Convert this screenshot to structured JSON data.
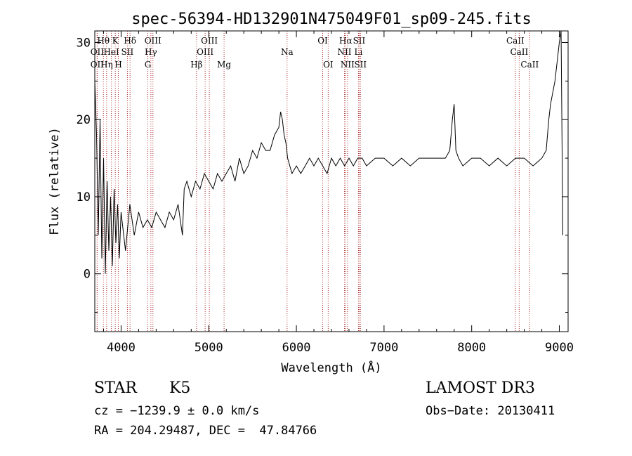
{
  "chart_data": {
    "type": "line",
    "title": "spec-56394-HD132901N475049F01_sp09-245.fits",
    "xlabel": "Wavelength (Å)",
    "ylabel": "Flux (relative)",
    "xlim": [
      3700,
      9100
    ],
    "ylim": [
      -7.5,
      31.5
    ],
    "x_ticks": [
      4000,
      5000,
      6000,
      7000,
      8000,
      9000
    ],
    "y_ticks": [
      0,
      10,
      20,
      30
    ],
    "grid": false,
    "series": [
      {
        "x": [
          3700,
          3720,
          3740,
          3760,
          3780,
          3800,
          3820,
          3840,
          3860,
          3880,
          3900,
          3920,
          3940,
          3960,
          3980,
          4000,
          4050,
          4100,
          4150,
          4200,
          4250,
          4300,
          4350,
          4400,
          4450,
          4500,
          4550,
          4600,
          4650,
          4700,
          4720,
          4750,
          4800,
          4850,
          4900,
          4950,
          5000,
          5050,
          5100,
          5150,
          5200,
          5250,
          5300,
          5350,
          5400,
          5450,
          5500,
          5550,
          5600,
          5650,
          5700,
          5750,
          5800,
          5820,
          5840,
          5860,
          5880,
          5900,
          5950,
          6000,
          6050,
          6100,
          6150,
          6200,
          6250,
          6300,
          6350,
          6400,
          6450,
          6500,
          6550,
          6600,
          6650,
          6700,
          6750,
          6800,
          6900,
          7000,
          7100,
          7200,
          7300,
          7400,
          7500,
          7600,
          7700,
          7750,
          7780,
          7800,
          7820,
          7850,
          7900,
          8000,
          8100,
          8200,
          8300,
          8400,
          8500,
          8600,
          8700,
          8800,
          8850,
          8880,
          8900,
          8950,
          9000,
          9020,
          9040
        ],
        "y": [
          25,
          18,
          5,
          20,
          2,
          15,
          0,
          12,
          3,
          10,
          1,
          11,
          4,
          9,
          2,
          8,
          3,
          9,
          5,
          8,
          6,
          7,
          6,
          8,
          7,
          6,
          8,
          7,
          9,
          5,
          11,
          12,
          10,
          12,
          11,
          13,
          12,
          11,
          13,
          12,
          13,
          14,
          12,
          15,
          13,
          14,
          16,
          15,
          17,
          16,
          16,
          18,
          19,
          21,
          20,
          18,
          17,
          15,
          13,
          14,
          13,
          14,
          15,
          14,
          15,
          14,
          13,
          15,
          14,
          15,
          14,
          15,
          14,
          15,
          15,
          14,
          15,
          15,
          14,
          15,
          14,
          15,
          15,
          15,
          15,
          16,
          20,
          22,
          16,
          15,
          14,
          15,
          15,
          14,
          15,
          14,
          15,
          15,
          14,
          15,
          16,
          20,
          22,
          25,
          30,
          32,
          5
        ]
      }
    ],
    "lines": [
      {
        "label": "Hθ",
        "x": 3798,
        "row": 0
      },
      {
        "label": "OII",
        "x": 3727,
        "row": 2
      },
      {
        "label": "OII",
        "x": 3727,
        "row": 1
      },
      {
        "label": "Hη",
        "x": 3835,
        "row": 2
      },
      {
        "label": "HeI",
        "x": 3889,
        "row": 1
      },
      {
        "label": "K",
        "x": 3934,
        "row": 0
      },
      {
        "label": "H",
        "x": 3969,
        "row": 2
      },
      {
        "label": "SII",
        "x": 4072,
        "row": 1
      },
      {
        "label": "Hδ",
        "x": 4102,
        "row": 0
      },
      {
        "label": "OIII",
        "x": 4363,
        "row": 0
      },
      {
        "label": "Hγ",
        "x": 4340,
        "row": 1
      },
      {
        "label": "G",
        "x": 4305,
        "row": 2
      },
      {
        "label": "Hβ",
        "x": 4861,
        "row": 2
      },
      {
        "label": "OIII",
        "x": 4959,
        "row": 1
      },
      {
        "label": "OIII",
        "x": 5007,
        "row": 0
      },
      {
        "label": "Mg",
        "x": 5175,
        "row": 2
      },
      {
        "label": "Na",
        "x": 5894,
        "row": 1
      },
      {
        "label": "OI",
        "x": 6300,
        "row": 0
      },
      {
        "label": "OI",
        "x": 6363,
        "row": 2
      },
      {
        "label": "Hα",
        "x": 6563,
        "row": 0
      },
      {
        "label": "NII",
        "x": 6548,
        "row": 1
      },
      {
        "label": "NII",
        "x": 6583,
        "row": 2
      },
      {
        "label": "SII",
        "x": 6716,
        "row": 0
      },
      {
        "label": "Li",
        "x": 6708,
        "row": 1
      },
      {
        "label": "SII",
        "x": 6731,
        "row": 2
      },
      {
        "label": "CaII",
        "x": 8498,
        "row": 0
      },
      {
        "label": "CaII",
        "x": 8542,
        "row": 1
      },
      {
        "label": "CaII",
        "x": 8662,
        "row": 2
      }
    ]
  },
  "info": {
    "class": "STAR",
    "subclass": "K5",
    "survey": "LAMOST DR3",
    "cz": "cz = −1239.9 ± 0.0 km/s",
    "obs_date": "Obs−Date: 20130411",
    "radec": "RA = 204.29487, DEC =  47.84766"
  }
}
